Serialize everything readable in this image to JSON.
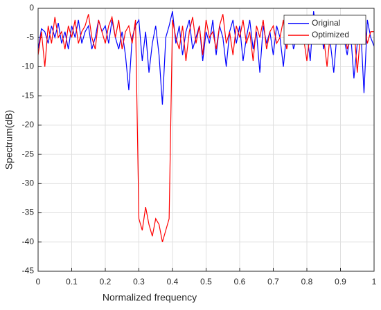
{
  "chart_data": {
    "type": "line",
    "xlabel": "Normalized frequency",
    "ylabel": "Spectrum(dB)",
    "x": [
      0,
      0.01,
      0.02,
      0.03,
      0.04,
      0.05,
      0.06,
      0.07,
      0.08,
      0.09,
      0.1,
      0.11,
      0.12,
      0.13,
      0.14,
      0.15,
      0.16,
      0.17,
      0.18,
      0.19,
      0.2,
      0.21,
      0.22,
      0.23,
      0.24,
      0.25,
      0.26,
      0.27,
      0.28,
      0.29,
      0.3,
      0.31,
      0.32,
      0.33,
      0.34,
      0.35,
      0.36,
      0.37,
      0.38,
      0.39,
      0.4,
      0.41,
      0.42,
      0.43,
      0.44,
      0.45,
      0.46,
      0.47,
      0.48,
      0.49,
      0.5,
      0.51,
      0.52,
      0.53,
      0.54,
      0.55,
      0.56,
      0.57,
      0.58,
      0.59,
      0.6,
      0.61,
      0.62,
      0.63,
      0.64,
      0.65,
      0.66,
      0.67,
      0.68,
      0.69,
      0.7,
      0.71,
      0.72,
      0.73,
      0.74,
      0.75,
      0.76,
      0.77,
      0.78,
      0.79,
      0.8,
      0.81,
      0.82,
      0.83,
      0.84,
      0.85,
      0.86,
      0.87,
      0.88,
      0.89,
      0.9,
      0.91,
      0.92,
      0.93,
      0.94,
      0.95,
      0.96,
      0.97,
      0.98,
      0.99,
      1
    ],
    "series": [
      {
        "name": "Original",
        "color": "#0000ff",
        "values": [
          -7,
          -3.5,
          -4,
          -6,
          -3,
          -5,
          -2.5,
          -6,
          -4,
          -7,
          -3,
          -5,
          -2,
          -6,
          -4,
          -3,
          -7,
          -5,
          -2,
          -4,
          -3,
          -6,
          -2,
          -5,
          -7,
          -4,
          -8,
          -14,
          -5,
          -3,
          -2,
          -9,
          -4,
          -11,
          -6,
          -3,
          -8,
          -16.5,
          -5,
          -3,
          -0.5,
          -6,
          -3,
          -8,
          -4,
          -2,
          -7,
          -5,
          -3,
          -9,
          -4,
          -6,
          -2,
          -8,
          -3,
          -5,
          -10,
          -4,
          -2,
          -6,
          -3,
          -9,
          -5,
          -2,
          -7,
          -4,
          -11,
          -3,
          -6,
          -4,
          -8,
          -3,
          -5,
          -10,
          -4,
          -2,
          -7,
          -5,
          -3,
          -6,
          -4,
          -9,
          -0.5,
          -5,
          -3,
          -7,
          -2,
          -6,
          -11,
          -4,
          -3,
          -5,
          -8,
          -4,
          -12,
          -6,
          -3,
          -14.5,
          -2,
          -5,
          -6.5
        ]
      },
      {
        "name": "Optimized",
        "color": "#ff0000",
        "values": [
          -8,
          -4,
          -10,
          -3,
          -6,
          -1.5,
          -5,
          -4,
          -7,
          -3,
          -5,
          -2,
          -6,
          -4,
          -3,
          -1,
          -5,
          -7,
          -2,
          -4,
          -6,
          -3,
          -1.5,
          -5,
          -2,
          -7,
          -4,
          -3,
          -6,
          -2,
          -36,
          -38,
          -34,
          -37,
          -39,
          -36,
          -37,
          -40,
          -38,
          -36,
          -2,
          -5,
          -7,
          -3,
          -9,
          -4,
          -1.5,
          -6,
          -3,
          -8,
          -2,
          -5,
          -4,
          -7,
          -3,
          -1,
          -6,
          -4,
          -8,
          -3,
          -5,
          -2,
          -6,
          -4,
          -9,
          -3,
          -5,
          -2,
          -7,
          -4,
          -3,
          -6,
          -5,
          -2,
          -7,
          -4,
          -3,
          -6,
          -2,
          -5,
          -9,
          -4,
          -2,
          -6,
          -3,
          -5,
          -10,
          -4,
          -3,
          -6,
          -4,
          -2,
          -7,
          -5,
          -3,
          -11,
          -4,
          -2,
          -6,
          -4,
          -4
        ]
      }
    ],
    "xlim": [
      0,
      1
    ],
    "xticks": [
      0,
      0.1,
      0.2,
      0.3,
      0.4,
      0.5,
      0.6,
      0.7,
      0.8,
      0.9,
      1
    ],
    "ylim": [
      -45,
      0
    ],
    "yticks": [
      -45,
      -40,
      -35,
      -30,
      -25,
      -20,
      -15,
      -10,
      -5,
      0
    ],
    "grid": true,
    "legend": "upper right"
  }
}
